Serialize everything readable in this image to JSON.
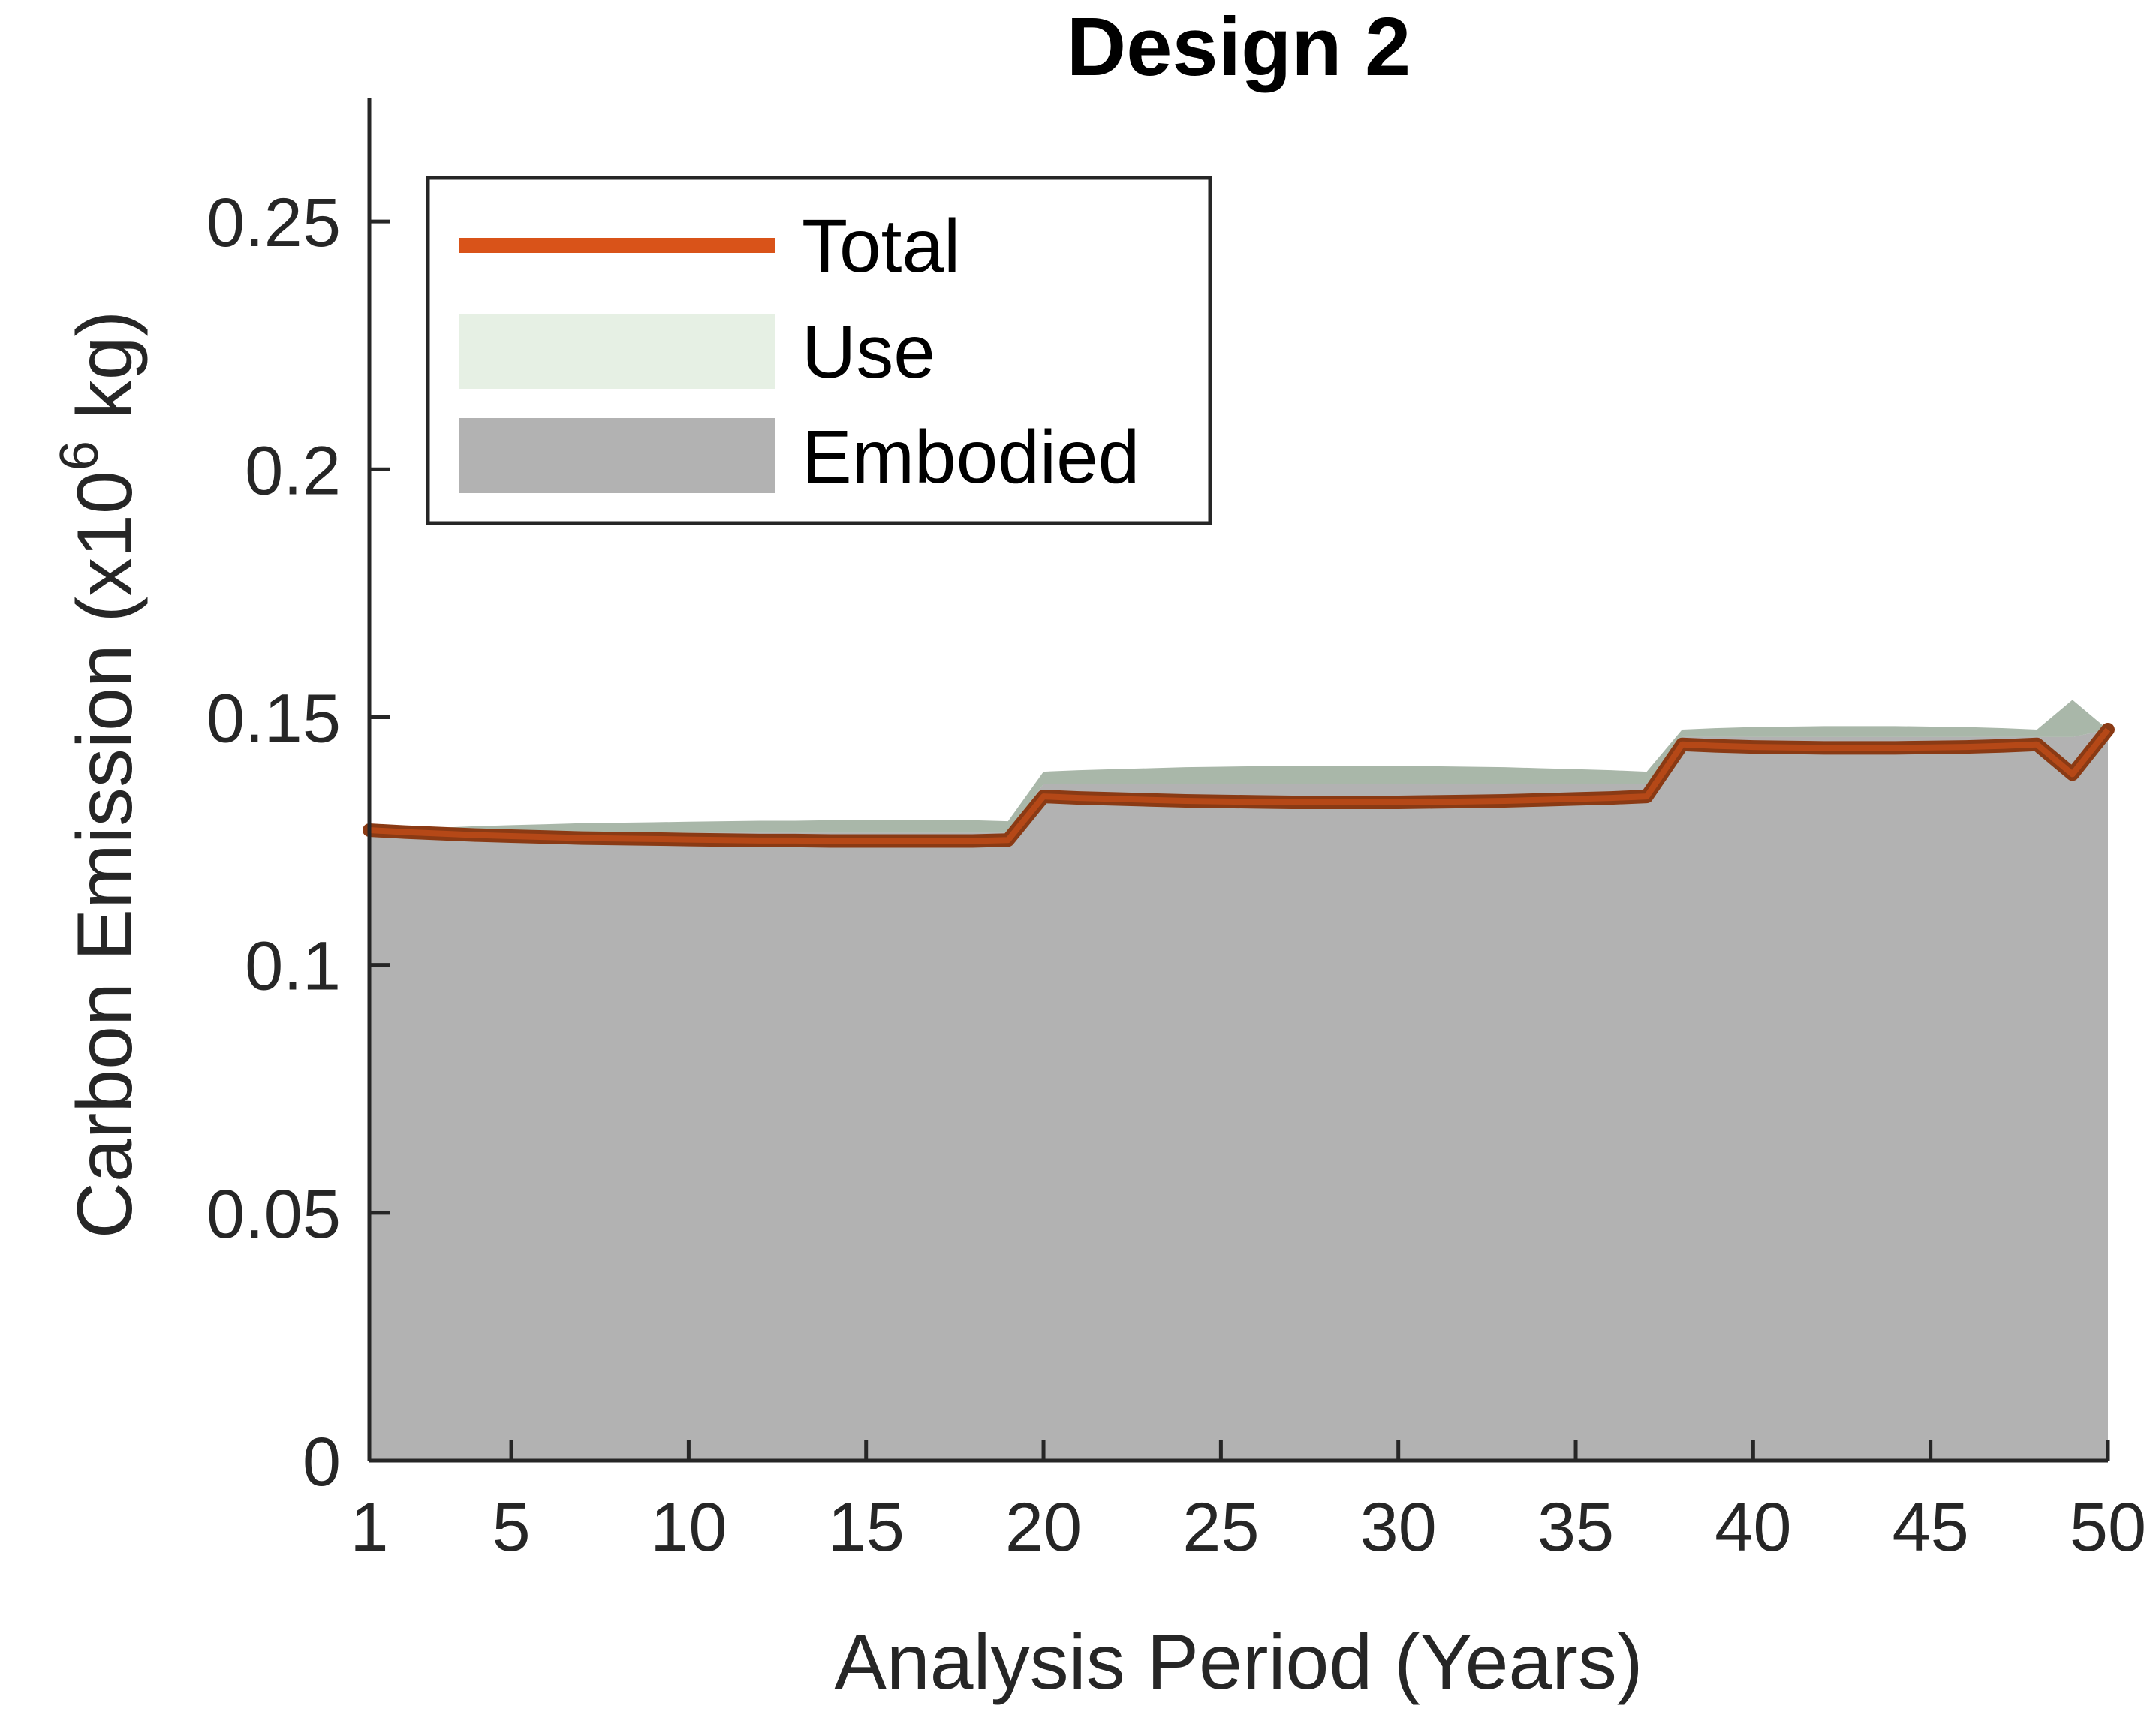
{
  "chart_data": {
    "type": "area",
    "title": "Design 2",
    "xlabel": "Analysis Period (Years)",
    "ylabel": "Carbon Emission (x10",
    "ylabel_exponent": "6",
    "ylabel_suffix": " kg)",
    "xlim": [
      1,
      50
    ],
    "ylim": [
      0,
      0.275
    ],
    "x_ticks": [
      1,
      5,
      10,
      15,
      20,
      25,
      30,
      35,
      40,
      45,
      50
    ],
    "x_tick_labels": [
      "1",
      "5",
      "10",
      "15",
      "20",
      "25",
      "30",
      "35",
      "40",
      "45",
      "50"
    ],
    "y_ticks": [
      0,
      0.05,
      0.1,
      0.15,
      0.2,
      0.25
    ],
    "y_tick_labels": [
      "0",
      "0.05",
      "0.1",
      "0.15",
      "0.2",
      "0.25"
    ],
    "grid": false,
    "legend_position": "top-left",
    "x": [
      1,
      2,
      3,
      4,
      5,
      6,
      7,
      8,
      9,
      10,
      11,
      12,
      13,
      14,
      15,
      16,
      17,
      18,
      19,
      20,
      21,
      22,
      23,
      24,
      25,
      26,
      27,
      28,
      29,
      30,
      31,
      32,
      33,
      34,
      35,
      36,
      37,
      38,
      39,
      40,
      41,
      42,
      43,
      44,
      45,
      46,
      47,
      48,
      49,
      50
    ],
    "series": [
      {
        "name": "Total",
        "kind": "line",
        "color": "#D95319",
        "values": [
          0.1272,
          0.1268,
          0.1265,
          0.1262,
          0.126,
          0.1258,
          0.1256,
          0.1255,
          0.1254,
          0.1253,
          0.1252,
          0.1251,
          0.1251,
          0.125,
          0.125,
          0.125,
          0.125,
          0.125,
          0.1252,
          0.134,
          0.1337,
          0.1335,
          0.1333,
          0.1331,
          0.133,
          0.1329,
          0.1328,
          0.1328,
          0.1328,
          0.1328,
          0.1329,
          0.133,
          0.1331,
          0.1333,
          0.1335,
          0.1337,
          0.134,
          0.1445,
          0.1442,
          0.144,
          0.1439,
          0.1438,
          0.1438,
          0.1438,
          0.1439,
          0.144,
          0.1442,
          0.1445,
          0.1385,
          0.1475
        ]
      },
      {
        "name": "Use",
        "kind": "area",
        "color": "#E6F0E4",
        "values": [
          0.0005,
          0.0007,
          0.001,
          0.0013,
          0.0015,
          0.0017,
          0.0019,
          0.002,
          0.0021,
          0.0022,
          0.0023,
          0.0024,
          0.0024,
          0.0025,
          0.0025,
          0.0025,
          0.0025,
          0.0025,
          0.0023,
          0.0025,
          0.0028,
          0.003,
          0.0032,
          0.0034,
          0.0035,
          0.0036,
          0.0037,
          0.0037,
          0.0037,
          0.0037,
          0.0036,
          0.0035,
          0.0034,
          0.0032,
          0.003,
          0.0028,
          0.0025,
          0.0015,
          0.0018,
          0.002,
          0.0021,
          0.0022,
          0.0022,
          0.0022,
          0.0021,
          0.002,
          0.0018,
          0.0015,
          0.0075,
          0.0
        ]
      },
      {
        "name": "Embodied",
        "kind": "area",
        "color": "#B2B2B2",
        "values": [
          0.1267,
          0.1267,
          0.1267,
          0.1267,
          0.1267,
          0.1267,
          0.1267,
          0.1267,
          0.1267,
          0.1267,
          0.1267,
          0.1267,
          0.1267,
          0.1267,
          0.1267,
          0.1267,
          0.1267,
          0.1267,
          0.1267,
          0.1365,
          0.1365,
          0.1365,
          0.1365,
          0.1365,
          0.1365,
          0.1365,
          0.1365,
          0.1365,
          0.1365,
          0.1365,
          0.1365,
          0.1365,
          0.1365,
          0.1365,
          0.1365,
          0.1365,
          0.1365,
          0.146,
          0.146,
          0.146,
          0.146,
          0.146,
          0.146,
          0.146,
          0.146,
          0.146,
          0.146,
          0.146,
          0.146,
          0.1475
        ]
      }
    ]
  }
}
